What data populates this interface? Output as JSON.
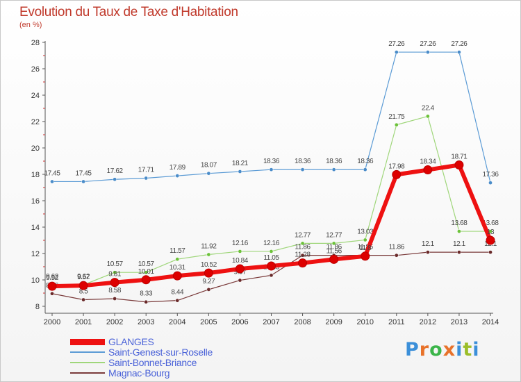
{
  "header": {
    "title": "Evolution du Taux de Taxe d'Habitation",
    "subtitle": "(en %)"
  },
  "brand": {
    "text": "Proxiti",
    "colors": [
      "#3b8fd9",
      "#e8722a",
      "#3bb54a",
      "#e8722a",
      "#3b8fd9",
      "#9bbe2a",
      "#3b8fd9"
    ]
  },
  "chart_data": {
    "type": "line",
    "x": [
      2000,
      2001,
      2002,
      2003,
      2004,
      2005,
      2006,
      2007,
      2008,
      2009,
      2010,
      2011,
      2012,
      2013,
      2014
    ],
    "ylim": [
      8,
      28
    ],
    "yticks": [
      8,
      10,
      12,
      14,
      16,
      18,
      20,
      22,
      24,
      26,
      28
    ],
    "grid": false,
    "legend_position": "bottom-left",
    "series": [
      {
        "name": "Saint-Genest-sur-Roselle",
        "color": "#5b9bd5",
        "marker_color": "#4a8cc9",
        "width": 1.2,
        "values": [
          17.45,
          17.45,
          17.62,
          17.71,
          17.89,
          18.07,
          18.21,
          18.36,
          18.36,
          18.36,
          18.36,
          27.26,
          27.26,
          27.26,
          17.36
        ],
        "labels": [
          "17.45",
          "17.45",
          "17.62",
          "17.71",
          "17.89",
          "18.07",
          "18.21",
          "18.36",
          "18.36",
          "18.36",
          "18.36",
          "27.26",
          "27.26",
          "27.26",
          "17.36"
        ]
      },
      {
        "name": "Saint-Bonnet-Briance",
        "color": "#9fd67a",
        "marker_color": "#6cc23a",
        "width": 1.2,
        "values": [
          9.62,
          9.62,
          10.57,
          10.57,
          11.57,
          11.92,
          12.16,
          12.16,
          12.77,
          12.77,
          13.03,
          21.75,
          22.4,
          13.68,
          13.68
        ],
        "labels": [
          "9.62",
          "9.62",
          "10.57",
          "10.57",
          "11.57",
          "11.92",
          "12.16",
          "12.16",
          "12.77",
          "12.77",
          "13.03",
          "21.75",
          "22.4",
          "13.68",
          "13.68"
        ]
      },
      {
        "name": "Magnac-Bourg",
        "color": "#7a3a3a",
        "marker_color": "#6a2a2a",
        "width": 1.2,
        "values": [
          8.96,
          8.5,
          8.58,
          8.33,
          8.44,
          9.27,
          9.97,
          10.35,
          11.86,
          11.86,
          11.86,
          11.86,
          12.1,
          12.1,
          12.1
        ],
        "labels": [
          "8.96",
          "8.5",
          "8.58",
          "8.33",
          "8.44",
          "9.27",
          "9.97",
          "10.35",
          "11.86",
          "11.86",
          "11.86",
          "11.86",
          "12.1",
          "12.1",
          "12.1"
        ]
      },
      {
        "name": "GLANGES",
        "color": "#ee1111",
        "marker_color": "#dd0000",
        "width": 6,
        "values": [
          9.52,
          9.57,
          9.81,
          10.01,
          10.31,
          10.52,
          10.84,
          11.05,
          11.28,
          11.56,
          11.8,
          17.98,
          18.34,
          18.71,
          13.0
        ],
        "labels": [
          "9.52",
          "9.57",
          "9.81",
          "10.01",
          "10.31",
          "10.52",
          "10.84",
          "11.05",
          "11.28",
          "11.56",
          "11.8",
          "17.98",
          "18.34",
          "18.71",
          "13"
        ]
      }
    ],
    "legend_order": [
      "GLANGES",
      "Saint-Genest-sur-Roselle",
      "Saint-Bonnet-Briance",
      "Magnac-Bourg"
    ]
  }
}
